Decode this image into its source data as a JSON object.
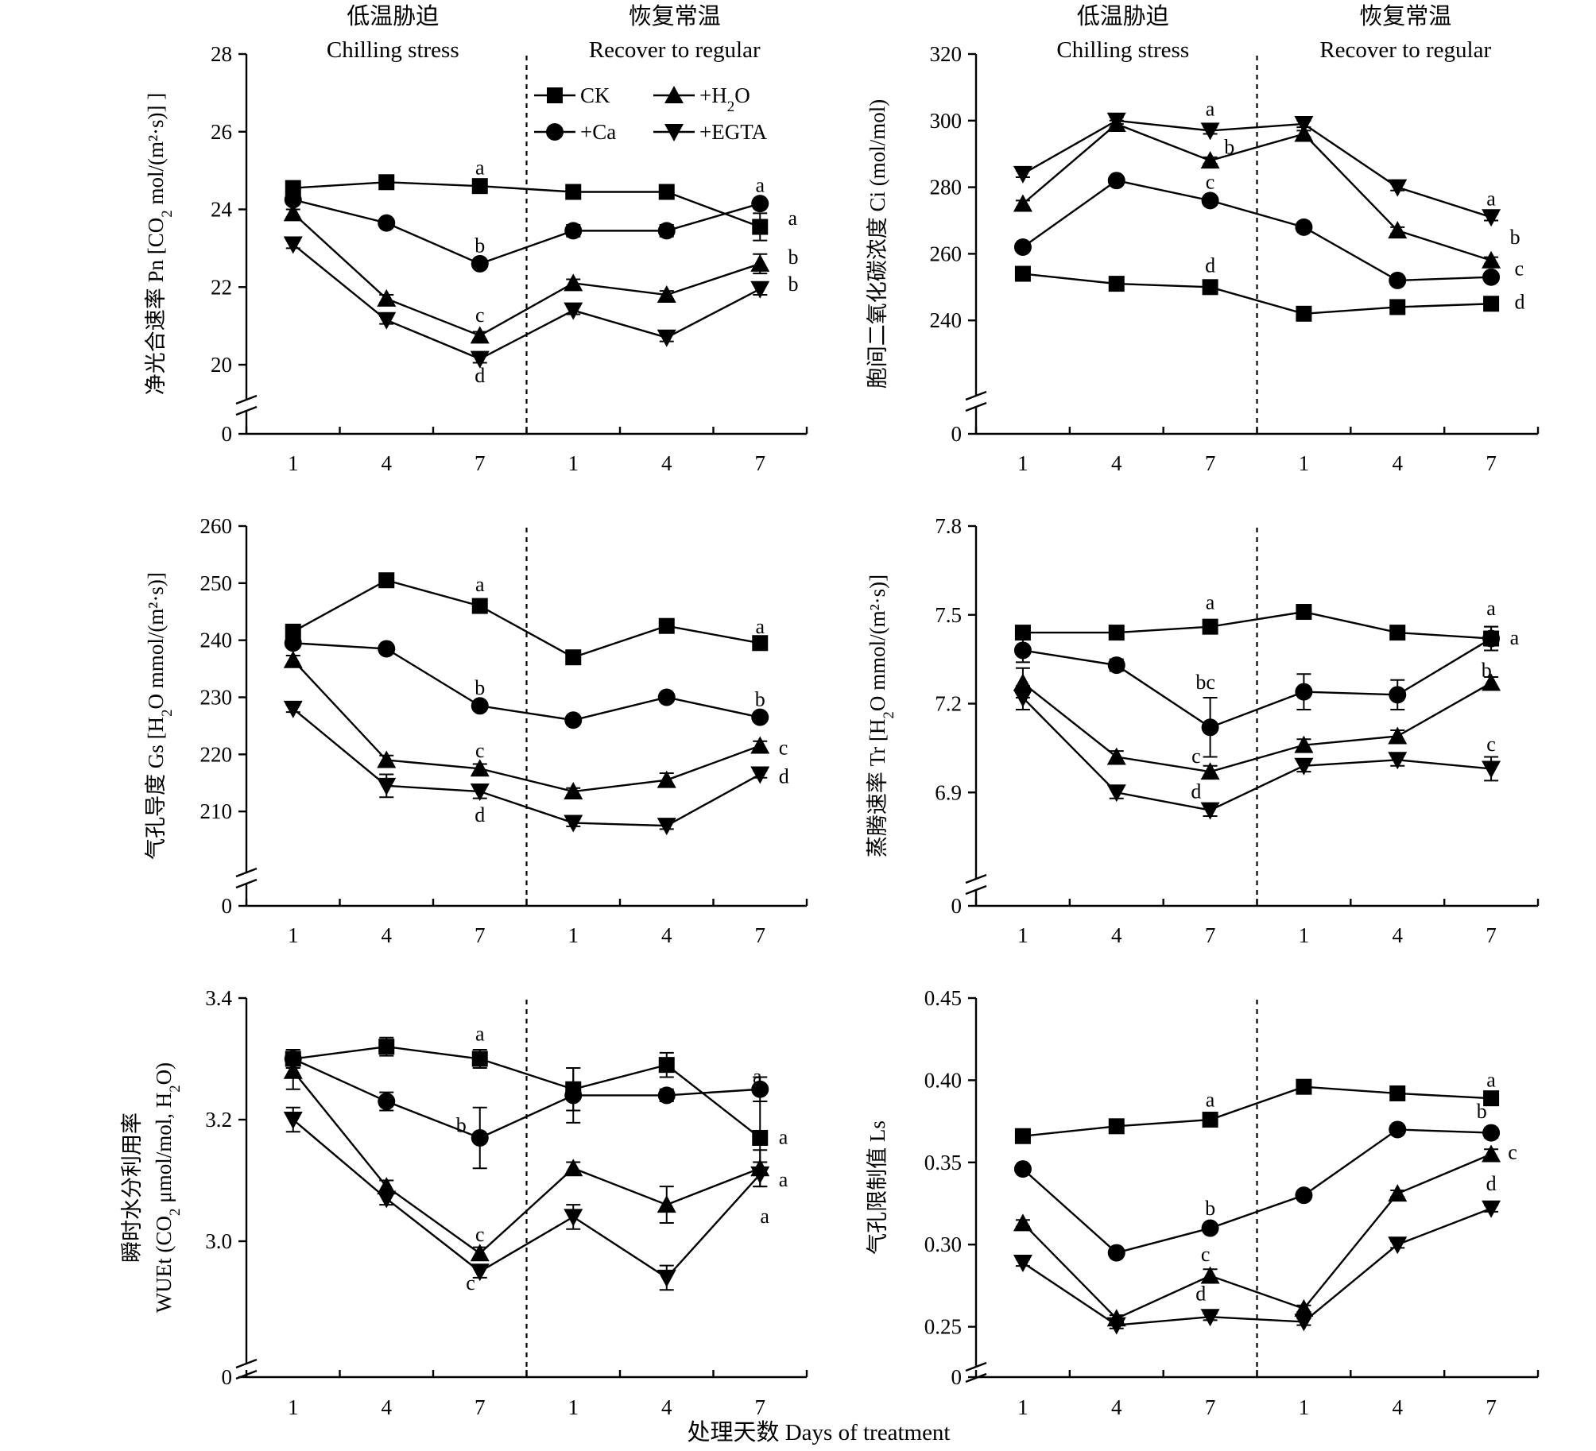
{
  "figure": {
    "x_axis_title": "处理天数 Days of treatment",
    "legend": [
      {
        "label": "CK",
        "marker": "square"
      },
      {
        "label": "+H2O",
        "marker": "triangle-up"
      },
      {
        "label": "+Ca",
        "marker": "circle"
      },
      {
        "label": "+EGTA",
        "marker": "triangle-down"
      }
    ]
  },
  "chart_data": [
    {
      "type": "line",
      "panel": "Pn",
      "ylabel": "净光合速率 Pn [CO2 mol/(m²·s)] ]",
      "ylim": [
        20,
        28
      ],
      "yticks": [
        20,
        22,
        24,
        26,
        28
      ],
      "ytick_labels": [
        "20",
        "22",
        "24",
        "26",
        "28"
      ],
      "broken_axis_zero": "0",
      "categories": [
        "1",
        "4",
        "7",
        "1",
        "4",
        "7"
      ],
      "phase_labels": [
        {
          "cn": "低温胁迫",
          "en": "Chilling stress"
        },
        {
          "cn": "恢复常温",
          "en": "Recover to regular"
        }
      ],
      "divider_after_index": 2,
      "series": [
        {
          "name": "CK",
          "marker": "square",
          "values": [
            24.55,
            24.7,
            24.6,
            24.45,
            24.45,
            23.55
          ],
          "errors": [
            0.1,
            0.1,
            0.1,
            0.1,
            0.1,
            0.35
          ]
        },
        {
          "name": "+Ca",
          "marker": "circle",
          "values": [
            24.25,
            23.65,
            22.6,
            23.45,
            23.45,
            24.15
          ],
          "errors": [
            0.1,
            0.1,
            0.1,
            0.15,
            0.15,
            0.1
          ]
        },
        {
          "name": "+H2O",
          "marker": "triangle-up",
          "values": [
            23.9,
            21.7,
            20.75,
            22.1,
            21.8,
            22.6
          ],
          "errors": [
            0.1,
            0.1,
            0.1,
            0.1,
            0.1,
            0.25
          ]
        },
        {
          "name": "+EGTA",
          "marker": "triangle-down",
          "values": [
            23.1,
            21.15,
            20.15,
            21.4,
            20.7,
            21.95
          ],
          "errors": [
            0.1,
            0.1,
            0.1,
            0.1,
            0.1,
            0.15
          ]
        }
      ],
      "annotations": [
        {
          "text": "a",
          "x": 2,
          "y": 24.9,
          "anchor": "middle"
        },
        {
          "text": "b",
          "x": 2,
          "y": 22.9,
          "anchor": "middle"
        },
        {
          "text": "c",
          "x": 2,
          "y": 21.1,
          "anchor": "middle"
        },
        {
          "text": "d",
          "x": 2,
          "y": 19.55,
          "anchor": "middle"
        },
        {
          "text": "a",
          "x": 5,
          "y": 24.45,
          "anchor": "middle"
        },
        {
          "text": "a",
          "x": 5.3,
          "y": 23.6,
          "anchor": "start"
        },
        {
          "text": "b",
          "x": 5.3,
          "y": 22.6,
          "anchor": "start"
        },
        {
          "text": "b",
          "x": 5.3,
          "y": 21.9,
          "anchor": "start"
        }
      ]
    },
    {
      "type": "line",
      "panel": "Ci",
      "ylabel": "胞间二氧化碳浓度 Ci (mol/mol)",
      "ylim": [
        220,
        320
      ],
      "yticks": [
        240,
        260,
        280,
        300,
        320
      ],
      "ytick_labels": [
        "240",
        "260",
        "280",
        "300",
        "320"
      ],
      "broken_axis_zero": "0",
      "categories": [
        "1",
        "4",
        "7",
        "1",
        "4",
        "7"
      ],
      "phase_labels": [
        {
          "cn": "低温胁迫",
          "en": "Chilling stress"
        },
        {
          "cn": "恢复常温",
          "en": "Recover to regular"
        }
      ],
      "divider_after_index": 2,
      "series": [
        {
          "name": "CK",
          "marker": "square",
          "values": [
            254,
            251,
            250,
            242,
            244,
            245
          ],
          "errors": [
            1,
            1,
            1,
            1,
            1,
            1
          ]
        },
        {
          "name": "+Ca",
          "marker": "circle",
          "values": [
            262,
            282,
            276,
            268,
            252,
            253
          ],
          "errors": [
            1,
            1,
            1,
            1,
            1,
            1
          ]
        },
        {
          "name": "+H2O",
          "marker": "triangle-up",
          "values": [
            275,
            299,
            288,
            296,
            267,
            258
          ],
          "errors": [
            1,
            1,
            1,
            1,
            1,
            1
          ]
        },
        {
          "name": "+EGTA",
          "marker": "triangle-down",
          "values": [
            284,
            300,
            297,
            299,
            280,
            271
          ],
          "errors": [
            1,
            1,
            1,
            1,
            1,
            1
          ]
        }
      ],
      "annotations": [
        {
          "text": "a",
          "x": 2,
          "y": 301.5,
          "anchor": "middle"
        },
        {
          "text": "b",
          "x": 2.15,
          "y": 290,
          "anchor": "start"
        },
        {
          "text": "c",
          "x": 2,
          "y": 279.5,
          "anchor": "middle"
        },
        {
          "text": "d",
          "x": 2,
          "y": 254.5,
          "anchor": "middle"
        },
        {
          "text": "a",
          "x": 5,
          "y": 274.5,
          "anchor": "middle"
        },
        {
          "text": "b",
          "x": 5.2,
          "y": 263,
          "anchor": "start"
        },
        {
          "text": "c",
          "x": 5.25,
          "y": 253.5,
          "anchor": "start"
        },
        {
          "text": "d",
          "x": 5.25,
          "y": 243.5,
          "anchor": "start"
        }
      ]
    },
    {
      "type": "line",
      "panel": "Gs",
      "ylabel": "气孔导度 Gs [H2O mmol/(m²·s)]",
      "ylim": [
        200,
        260
      ],
      "yticks": [
        210,
        220,
        230,
        240,
        250,
        260
      ],
      "ytick_labels": [
        "210",
        "220",
        "230",
        "240",
        "250",
        "260"
      ],
      "broken_axis_zero": "0",
      "categories": [
        "1",
        "4",
        "7",
        "1",
        "4",
        "7"
      ],
      "phase_labels": [],
      "divider_after_index": 2,
      "series": [
        {
          "name": "CK",
          "marker": "square",
          "values": [
            241.5,
            250.5,
            246,
            237,
            242.5,
            239.5
          ],
          "errors": [
            0.8,
            0.8,
            0.8,
            0.8,
            0.8,
            0.8
          ]
        },
        {
          "name": "+Ca",
          "marker": "circle",
          "values": [
            239.5,
            238.5,
            228.5,
            226,
            230,
            226.5
          ],
          "errors": [
            0.6,
            0.6,
            0.6,
            0.6,
            0.6,
            0.6
          ]
        },
        {
          "name": "+H2O",
          "marker": "triangle-up",
          "values": [
            236.5,
            219,
            217.5,
            213.5,
            215.5,
            221.5
          ],
          "errors": [
            0.8,
            0.8,
            0.8,
            0.6,
            1.2,
            0.8
          ]
        },
        {
          "name": "+EGTA",
          "marker": "triangle-down",
          "values": [
            228,
            214.5,
            213.5,
            208,
            207.5,
            216.5
          ],
          "errors": [
            0.6,
            2,
            1.2,
            0.6,
            0.6,
            0.6
          ]
        }
      ],
      "annotations": [
        {
          "text": "a",
          "x": 2,
          "y": 248.6,
          "anchor": "middle"
        },
        {
          "text": "a",
          "x": 5,
          "y": 241.2,
          "anchor": "middle"
        },
        {
          "text": "b",
          "x": 2,
          "y": 230.5,
          "anchor": "middle"
        },
        {
          "text": "b",
          "x": 5,
          "y": 228.5,
          "anchor": "middle"
        },
        {
          "text": "c",
          "x": 2,
          "y": 219.5,
          "anchor": "middle"
        },
        {
          "text": "c",
          "x": 5.2,
          "y": 220,
          "anchor": "start"
        },
        {
          "text": "d",
          "x": 5.2,
          "y": 215,
          "anchor": "start"
        },
        {
          "text": "d",
          "x": 2,
          "y": 208.2,
          "anchor": "middle"
        }
      ]
    },
    {
      "type": "line",
      "panel": "Tr",
      "ylabel": "蒸腾速率 Tr [H2O mmol/(m²·s)]",
      "ylim": [
        6.6,
        7.8
      ],
      "yticks": [
        6.9,
        7.2,
        7.5,
        7.8
      ],
      "ytick_labels": [
        "6.9",
        "7.2",
        "7.5",
        "7.8"
      ],
      "broken_axis_zero": "0",
      "categories": [
        "1",
        "4",
        "7",
        "1",
        "4",
        "7"
      ],
      "phase_labels": [],
      "divider_after_index": 2,
      "series": [
        {
          "name": "CK",
          "marker": "square",
          "values": [
            7.44,
            7.44,
            7.46,
            7.51,
            7.44,
            7.42
          ],
          "errors": [
            0.02,
            0.02,
            0.02,
            0.02,
            0.02,
            0.04
          ]
        },
        {
          "name": "+Ca",
          "marker": "circle",
          "values": [
            7.38,
            7.33,
            7.12,
            7.24,
            7.23,
            7.42
          ],
          "errors": [
            0.04,
            0.02,
            0.1,
            0.06,
            0.05,
            0.04
          ]
        },
        {
          "name": "+H2O",
          "marker": "triangle-up",
          "values": [
            7.27,
            7.02,
            6.97,
            7.06,
            7.09,
            7.27
          ],
          "errors": [
            0.05,
            0.02,
            0.02,
            0.02,
            0.02,
            0.02
          ]
        },
        {
          "name": "+EGTA",
          "marker": "triangle-down",
          "values": [
            7.22,
            6.9,
            6.84,
            6.99,
            7.01,
            6.98
          ],
          "errors": [
            0.04,
            0.02,
            0.02,
            0.02,
            0.02,
            0.04
          ]
        }
      ],
      "annotations": [
        {
          "text": "a",
          "x": 2,
          "y": 7.52,
          "anchor": "middle"
        },
        {
          "text": "bc",
          "x": 1.95,
          "y": 7.25,
          "anchor": "middle"
        },
        {
          "text": "c",
          "x": 1.85,
          "y": 7.0,
          "anchor": "middle"
        },
        {
          "text": "d",
          "x": 1.85,
          "y": 6.88,
          "anchor": "middle"
        },
        {
          "text": "a",
          "x": 5,
          "y": 7.5,
          "anchor": "middle"
        },
        {
          "text": "a",
          "x": 5.2,
          "y": 7.4,
          "anchor": "start"
        },
        {
          "text": "b",
          "x": 4.95,
          "y": 7.29,
          "anchor": "middle"
        },
        {
          "text": "c",
          "x": 5,
          "y": 7.04,
          "anchor": "middle"
        }
      ]
    },
    {
      "type": "line",
      "panel": "WUEt",
      "ylabel": [
        "瞬时水分利用率",
        "WUEt (CO2 μmol/mol, H2O)"
      ],
      "ylim": [
        2.8,
        3.4
      ],
      "yticks": [
        3.0,
        3.2,
        3.4
      ],
      "ytick_labels": [
        "3.0",
        "3.2",
        "3.4"
      ],
      "broken_axis_zero": "0",
      "categories": [
        "1",
        "4",
        "7",
        "1",
        "4",
        "7"
      ],
      "phase_labels": [],
      "divider_after_index": 2,
      "series": [
        {
          "name": "CK",
          "marker": "square",
          "values": [
            3.3,
            3.32,
            3.3,
            3.25,
            3.29,
            3.17
          ],
          "errors": [
            0.015,
            0.015,
            0.015,
            0.035,
            0.02,
            0.06
          ]
        },
        {
          "name": "+Ca",
          "marker": "circle",
          "values": [
            3.3,
            3.23,
            3.17,
            3.24,
            3.24,
            3.25
          ],
          "errors": [
            0.015,
            0.015,
            0.05,
            0.045,
            0.01,
            0.02
          ]
        },
        {
          "name": "+H2O",
          "marker": "triangle-up",
          "values": [
            3.28,
            3.09,
            2.98,
            3.12,
            3.06,
            3.12
          ],
          "errors": [
            0.03,
            0.01,
            0.01,
            0.01,
            0.03,
            0.03
          ]
        },
        {
          "name": "+EGTA",
          "marker": "triangle-down",
          "values": [
            3.2,
            3.07,
            2.95,
            3.04,
            2.94,
            3.11
          ],
          "errors": [
            0.02,
            0.01,
            0.01,
            0.02,
            0.02,
            0.02
          ]
        }
      ],
      "annotations": [
        {
          "text": "a",
          "x": 2,
          "y": 3.33,
          "anchor": "middle"
        },
        {
          "text": "b",
          "x": 1.8,
          "y": 3.18,
          "anchor": "middle"
        },
        {
          "text": "c",
          "x": 2,
          "y": 3.0,
          "anchor": "middle"
        },
        {
          "text": "c",
          "x": 1.9,
          "y": 2.92,
          "anchor": "middle"
        },
        {
          "text": "a",
          "x": 4.97,
          "y": 3.26,
          "anchor": "middle"
        },
        {
          "text": "a",
          "x": 5.2,
          "y": 3.16,
          "anchor": "start"
        },
        {
          "text": "a",
          "x": 5.2,
          "y": 3.09,
          "anchor": "start"
        },
        {
          "text": "a",
          "x": 5.05,
          "y": 3.03,
          "anchor": "middle"
        }
      ]
    },
    {
      "type": "line",
      "panel": "Ls",
      "ylabel": "气孔限制值 Ls",
      "ylim": [
        0.23,
        0.45
      ],
      "yticks": [
        0.25,
        0.3,
        0.35,
        0.4,
        0.45
      ],
      "ytick_labels": [
        "0.25",
        "0.30",
        "0.35",
        "0.40",
        "0.45"
      ],
      "broken_axis_zero": "0",
      "categories": [
        "1",
        "4",
        "7",
        "1",
        "4",
        "7"
      ],
      "phase_labels": [],
      "divider_after_index": 2,
      "series": [
        {
          "name": "CK",
          "marker": "square",
          "values": [
            0.366,
            0.372,
            0.376,
            0.396,
            0.392,
            0.389
          ],
          "errors": [
            0.003,
            0.003,
            0.003,
            0.003,
            0.003,
            0.003
          ]
        },
        {
          "name": "+Ca",
          "marker": "circle",
          "values": [
            0.346,
            0.295,
            0.31,
            0.33,
            0.37,
            0.368
          ],
          "errors": [
            0.002,
            0.002,
            0.002,
            0.002,
            0.002,
            0.003
          ]
        },
        {
          "name": "+H2O",
          "marker": "triangle-up",
          "values": [
            0.313,
            0.255,
            0.281,
            0.261,
            0.331,
            0.355
          ],
          "errors": [
            0.002,
            0.002,
            0.004,
            0.002,
            0.002,
            0.003
          ]
        },
        {
          "name": "+EGTA",
          "marker": "triangle-down",
          "values": [
            0.289,
            0.251,
            0.256,
            0.253,
            0.3,
            0.322
          ],
          "errors": [
            0.002,
            0.002,
            0.002,
            0.002,
            0.002,
            0.002
          ]
        }
      ],
      "annotations": [
        {
          "text": "a",
          "x": 2,
          "y": 0.384,
          "anchor": "middle"
        },
        {
          "text": "b",
          "x": 2,
          "y": 0.318,
          "anchor": "middle"
        },
        {
          "text": "c",
          "x": 1.95,
          "y": 0.29,
          "anchor": "middle"
        },
        {
          "text": "d",
          "x": 1.9,
          "y": 0.266,
          "anchor": "middle"
        },
        {
          "text": "a",
          "x": 5,
          "y": 0.396,
          "anchor": "middle"
        },
        {
          "text": "b",
          "x": 4.9,
          "y": 0.377,
          "anchor": "middle"
        },
        {
          "text": "c",
          "x": 5.18,
          "y": 0.352,
          "anchor": "start"
        },
        {
          "text": "d",
          "x": 5,
          "y": 0.333,
          "anchor": "middle"
        }
      ]
    }
  ]
}
